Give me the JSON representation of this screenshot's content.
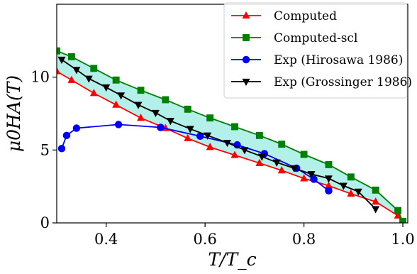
{
  "chart_data": {
    "type": "line",
    "xlabel": "T/T_c",
    "ylabel": "μ0HA(T)",
    "xlim": [
      0.3,
      1.01
    ],
    "ylim": [
      0,
      15
    ],
    "x_ticks": [
      0.4,
      0.6,
      0.8,
      1.0
    ],
    "x_tick_labels": [
      "0.4",
      "0.6",
      "0.8",
      "1.0"
    ],
    "y_ticks": [
      0,
      5,
      10
    ],
    "y_tick_labels": [
      "0",
      "5",
      "10"
    ],
    "grid": false,
    "legend_position": "top-right",
    "fill_between": {
      "upper": "Computed-scl",
      "lower": "Computed",
      "color": "#b3f0ea"
    },
    "series": [
      {
        "name": "Computed",
        "color": "#ff0000",
        "marker": "triangle-up",
        "x": [
          0.3,
          0.33,
          0.375,
          0.42,
          0.47,
          0.52,
          0.565,
          0.61,
          0.66,
          0.71,
          0.755,
          0.8,
          0.85,
          0.895,
          0.945,
          0.99
        ],
        "y": [
          10.4,
          9.8,
          8.9,
          8.1,
          7.2,
          6.5,
          5.8,
          5.2,
          4.65,
          4.1,
          3.6,
          3.05,
          2.55,
          2.0,
          1.45,
          0.5
        ]
      },
      {
        "name": "Computed-scl",
        "color": "#008000",
        "marker": "square",
        "x": [
          0.3,
          0.33,
          0.375,
          0.42,
          0.47,
          0.52,
          0.565,
          0.61,
          0.66,
          0.71,
          0.755,
          0.8,
          0.85,
          0.895,
          0.945,
          0.99,
          1.0
        ],
        "y": [
          11.8,
          11.4,
          10.6,
          9.8,
          9.1,
          8.45,
          7.8,
          7.2,
          6.6,
          6.0,
          5.4,
          4.7,
          4.0,
          3.15,
          2.25,
          0.85,
          0.1
        ]
      },
      {
        "name": "Exp (Hirosawa 1986)",
        "color": "#0000ff",
        "marker": "circle",
        "x": [
          0.31,
          0.32,
          0.34,
          0.425,
          0.51,
          0.59,
          0.665,
          0.72,
          0.785,
          0.82,
          0.85
        ],
        "y": [
          5.1,
          6.0,
          6.5,
          6.75,
          6.55,
          5.95,
          5.35,
          4.75,
          3.75,
          3.0,
          2.2
        ]
      },
      {
        "name": "Exp (Grossinger 1986)",
        "color": "#000000",
        "marker": "triangle-down",
        "x": [
          0.31,
          0.34,
          0.365,
          0.4,
          0.43,
          0.465,
          0.5,
          0.53,
          0.57,
          0.605,
          0.645,
          0.68,
          0.715,
          0.745,
          0.78,
          0.815,
          0.85,
          0.88,
          0.91,
          0.945
        ],
        "y": [
          11.2,
          10.5,
          9.9,
          9.3,
          8.75,
          8.1,
          7.55,
          7.0,
          6.45,
          6.0,
          5.5,
          5.0,
          4.55,
          4.15,
          3.75,
          3.35,
          3.05,
          2.55,
          2.15,
          0.95
        ]
      }
    ]
  }
}
